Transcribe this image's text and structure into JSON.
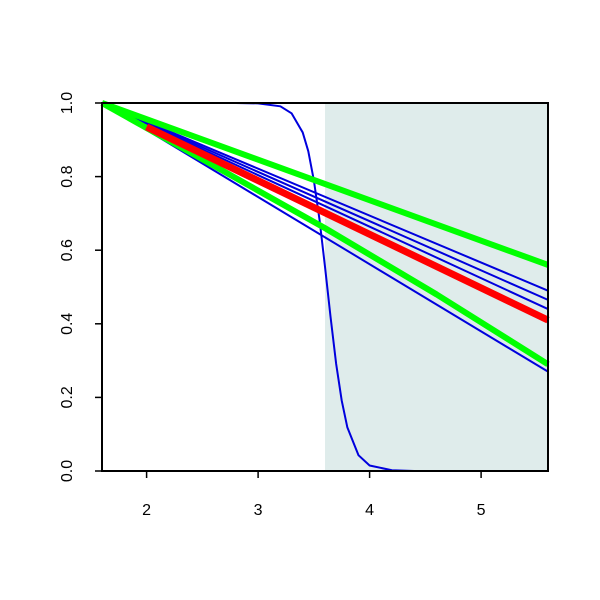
{
  "chart_data": {
    "type": "line",
    "xlim": [
      1.6,
      5.6
    ],
    "ylim": [
      0,
      1
    ],
    "xticks": [
      2,
      3,
      4,
      5
    ],
    "yticks": [
      {
        "value": 0,
        "label": "0.0"
      },
      0.2,
      0.4,
      0.6,
      0.8,
      {
        "value": 1,
        "label": "1.0"
      }
    ],
    "shaded_region": {
      "x": [
        3.6,
        5.6
      ],
      "color": "#dfeceb"
    },
    "series": [
      {
        "color": "#0000dd",
        "linewidth": 2,
        "x": [
          1.6,
          5.6
        ],
        "values": [
          1,
          0.27
        ]
      },
      {
        "color": "#0000dd",
        "linewidth": 2,
        "x": [
          1.6,
          5.6
        ],
        "values": [
          1,
          0.44
        ]
      },
      {
        "color": "#0000dd",
        "linewidth": 2,
        "x": [
          1.6,
          5.6
        ],
        "values": [
          1,
          0.465
        ]
      },
      {
        "color": "#0000dd",
        "linewidth": 2,
        "x": [
          1.6,
          5.6
        ],
        "values": [
          1,
          0.49
        ]
      },
      {
        "color": "#0000dd",
        "linewidth": 2,
        "x": [
          1.6,
          2.8,
          3.0,
          3.2,
          3.3,
          3.4,
          3.45,
          3.5,
          3.55,
          3.6,
          3.65,
          3.7,
          3.75,
          3.8,
          3.9,
          4.0,
          4.2,
          4.4,
          5.6
        ],
        "values": [
          1,
          1,
          0.999,
          0.991,
          0.972,
          0.92,
          0.869,
          0.79,
          0.685,
          0.555,
          0.418,
          0.291,
          0.191,
          0.119,
          0.043,
          0.015,
          0.002,
          0,
          0
        ]
      },
      {
        "color": "#00ff00",
        "linewidth": 6,
        "x": [
          1.6,
          5.6
        ],
        "values": [
          1,
          0.56
        ]
      },
      {
        "color": "#00ff00",
        "linewidth": 6,
        "x": [
          1.6,
          2.6,
          3.6,
          4.6,
          5.6
        ],
        "values": [
          1,
          0.83,
          0.66,
          0.48,
          0.29
        ]
      },
      {
        "color": "#ff0000",
        "linewidth": 7,
        "x": [
          2.0,
          5.6
        ],
        "values": [
          0.935,
          0.41
        ]
      }
    ]
  }
}
